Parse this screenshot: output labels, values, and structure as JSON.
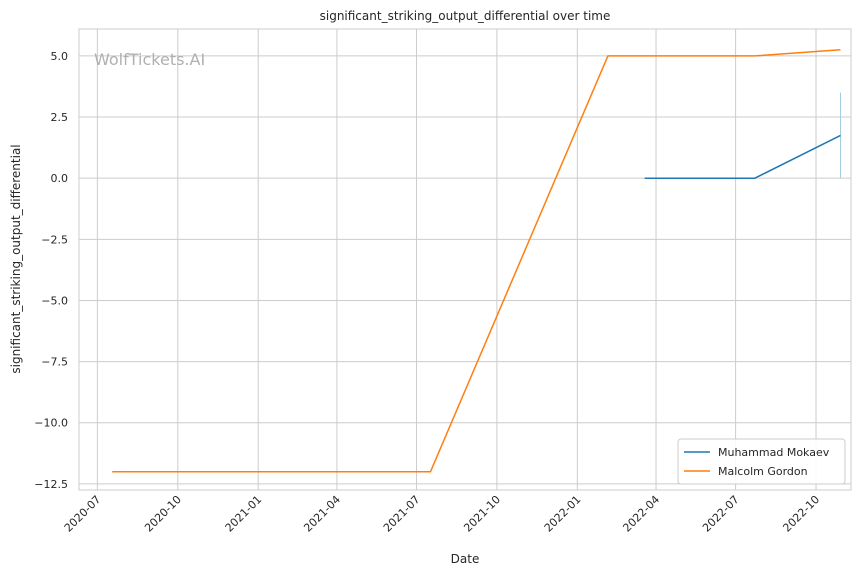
{
  "chart_data": {
    "type": "line",
    "title": "significant_striking_output_differential over time",
    "xlabel": "Date",
    "ylabel": "significant_striking_output_differential",
    "watermark": "WolfTickets.AI",
    "grid": true,
    "legend_position": "lower-right",
    "xlim": [
      "2020-06-10",
      "2022-11-10"
    ],
    "ylim": [
      -12.75,
      6.1
    ],
    "x_ticks": [
      "2020-07",
      "2020-10",
      "2021-01",
      "2021-04",
      "2021-07",
      "2021-10",
      "2022-01",
      "2022-04",
      "2022-07",
      "2022-10"
    ],
    "y_ticks": [
      {
        "value": 5.0,
        "label": "5.0"
      },
      {
        "value": 2.5,
        "label": "2.5"
      },
      {
        "value": 0.0,
        "label": "0.0"
      },
      {
        "value": -2.5,
        "label": "−2.5"
      },
      {
        "value": -5.0,
        "label": "−5.0"
      },
      {
        "value": -7.5,
        "label": "−7.5"
      },
      {
        "value": -10.0,
        "label": "−10.0"
      },
      {
        "value": -12.5,
        "label": "−12.5"
      }
    ],
    "series": [
      {
        "name": "Muhammad Mokaev",
        "color": "#1f77b4",
        "points": [
          {
            "x": "2022-03-19",
            "y": 0.0
          },
          {
            "x": "2022-07-23",
            "y": 0.0
          },
          {
            "x": "2022-10-29",
            "y": 1.75
          }
        ]
      },
      {
        "name": "Malcolm Gordon",
        "color": "#ff7f0e",
        "points": [
          {
            "x": "2020-07-18",
            "y": -12.0
          },
          {
            "x": "2021-07-17",
            "y": -12.0
          },
          {
            "x": "2022-02-05",
            "y": 5.0
          },
          {
            "x": "2022-07-23",
            "y": 5.0
          },
          {
            "x": "2022-10-29",
            "y": 5.25
          }
        ]
      }
    ],
    "error_bar": {
      "x": "2022-10-29",
      "y_low": 0.0,
      "y_high": 3.5,
      "color": "#a6cee3"
    }
  }
}
